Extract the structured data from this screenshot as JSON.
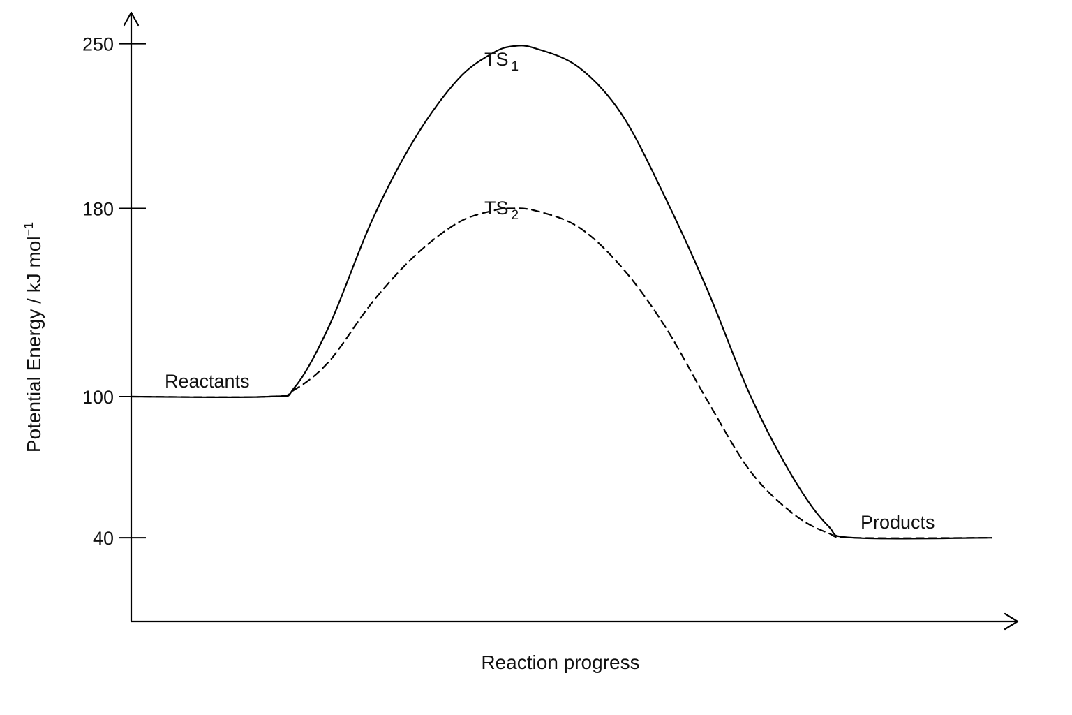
{
  "chart_data": {
    "type": "line",
    "ylabel": "Potential Energy / kJ mol",
    "ylabel_superscript": "−1",
    "xlabel": "Reaction progress",
    "yticks": [
      250,
      180,
      100,
      40
    ],
    "ylim": [
      0,
      280
    ],
    "xlim": [
      0,
      100
    ],
    "grid": false,
    "series": [
      {
        "style": "solid",
        "points": [
          [
            0,
            100
          ],
          [
            16,
            100
          ],
          [
            19,
            104
          ],
          [
            23,
            130
          ],
          [
            28,
            175
          ],
          [
            33,
            210
          ],
          [
            38,
            235
          ],
          [
            42,
            246
          ],
          [
            44.5,
            249
          ],
          [
            47,
            248
          ],
          [
            52,
            240
          ],
          [
            57,
            220
          ],
          [
            62,
            185
          ],
          [
            67,
            145
          ],
          [
            72,
            100
          ],
          [
            77,
            65
          ],
          [
            81,
            45
          ],
          [
            84,
            40
          ],
          [
            100,
            40
          ]
        ]
      },
      {
        "style": "dashed",
        "points": [
          [
            0,
            100
          ],
          [
            16,
            100
          ],
          [
            19,
            103
          ],
          [
            23,
            115
          ],
          [
            28,
            140
          ],
          [
            33,
            160
          ],
          [
            38,
            174
          ],
          [
            42,
            179
          ],
          [
            44,
            180
          ],
          [
            47,
            179
          ],
          [
            52,
            172
          ],
          [
            57,
            155
          ],
          [
            62,
            130
          ],
          [
            67,
            98
          ],
          [
            72,
            68
          ],
          [
            77,
            50
          ],
          [
            81,
            42
          ],
          [
            84,
            40
          ],
          [
            100,
            40
          ]
        ]
      }
    ],
    "annotations": [
      {
        "id": "reactants",
        "text": "Reactants"
      },
      {
        "id": "products",
        "text": "Products"
      },
      {
        "id": "ts1",
        "text": "TS",
        "sub": "1"
      },
      {
        "id": "ts2",
        "text": "TS",
        "sub": "2"
      }
    ]
  }
}
